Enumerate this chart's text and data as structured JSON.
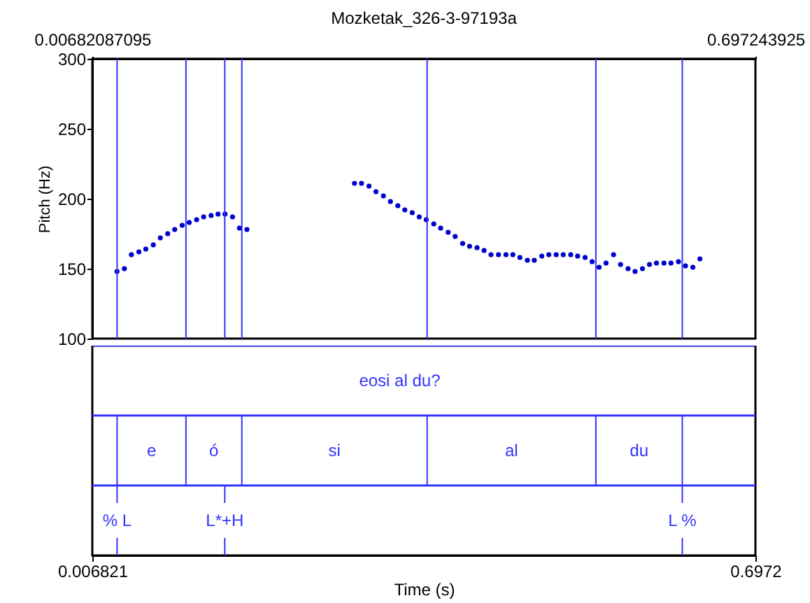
{
  "chart_data": [
    {
      "type": "scatter",
      "title": "Mozketak_326-3-97193a",
      "ylabel": "Pitch (Hz)",
      "xlim": [
        0.00682087095,
        0.697243925
      ],
      "xticks": [
        0.00682087095,
        0.697243925
      ],
      "ylim": [
        100,
        300
      ],
      "yticks": [
        100,
        150,
        200,
        250,
        300
      ],
      "marker": "circle",
      "series": [
        {
          "color": "#0000cc",
          "x": [
            0.0325,
            0.0402,
            0.0475,
            0.0553,
            0.0625,
            0.0703,
            0.0776,
            0.0853,
            0.0926,
            0.1004,
            0.1077,
            0.1154,
            0.1227,
            0.1305,
            0.1377,
            0.145,
            0.1528,
            0.16,
            0.1678,
            0.2798,
            0.2871,
            0.2949,
            0.3021,
            0.3099,
            0.3172,
            0.3249,
            0.3322,
            0.3399,
            0.3472,
            0.3545,
            0.3623,
            0.3695,
            0.3773,
            0.3846,
            0.3924,
            0.3996,
            0.4074,
            0.4147,
            0.4219,
            0.4297,
            0.4375,
            0.4447,
            0.452,
            0.4598,
            0.467,
            0.4748,
            0.4821,
            0.4898,
            0.4971,
            0.5049,
            0.5121,
            0.5199,
            0.5272,
            0.5345,
            0.5417,
            0.5495,
            0.5568,
            0.5646,
            0.5719,
            0.5796,
            0.5869,
            0.5942,
            0.602,
            0.6093,
            0.6171,
            0.6244,
            0.6321,
            0.6394
          ],
          "values": [
            148,
            150,
            160,
            162,
            164,
            167,
            172,
            175,
            178,
            181,
            183,
            185,
            187,
            188,
            189,
            189,
            187,
            179,
            178,
            211,
            211,
            209,
            205,
            202,
            198,
            195,
            192,
            190,
            187,
            185,
            182,
            179,
            176,
            173,
            168,
            166,
            165,
            163,
            160,
            160,
            160,
            160,
            158,
            156,
            156,
            159,
            160,
            160,
            160,
            160,
            159,
            158,
            155,
            151,
            154,
            160,
            153,
            150,
            148,
            150,
            153,
            154,
            154,
            154,
            155,
            152,
            151,
            157
          ]
        }
      ],
      "ref_lines": [
        {
          "axis": "x",
          "value": 0.0326,
          "label": "% L",
          "color": "#3333ff"
        },
        {
          "axis": "x",
          "value": 0.1043,
          "color": "#3333ff"
        },
        {
          "axis": "x",
          "value": 0.1447,
          "label": "L*+H",
          "color": "#3333ff"
        },
        {
          "axis": "x",
          "value": 0.1625,
          "color": "#3333ff"
        },
        {
          "axis": "x",
          "value": 0.3554,
          "color": "#3333ff"
        },
        {
          "axis": "x",
          "value": 0.5311,
          "color": "#3333ff"
        },
        {
          "axis": "x",
          "value": 0.6211,
          "label": "L %",
          "color": "#3333ff"
        }
      ]
    },
    {
      "type": "other",
      "xlabel": "Time (s)",
      "annotations": [
        "eosi al du?",
        "e",
        "ó",
        "si",
        "al",
        "du",
        "0.006821",
        "0.6972"
      ]
    }
  ]
}
